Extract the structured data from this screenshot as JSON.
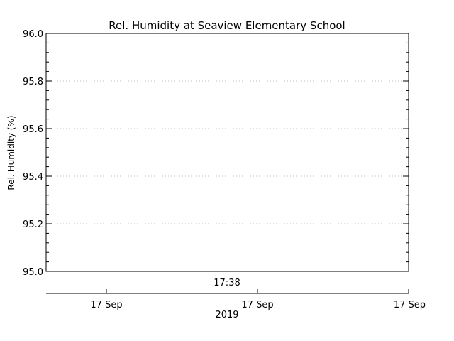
{
  "chart_data": {
    "type": "line",
    "title": "Rel. Humidity at Seaview Elementary School",
    "ylabel": "Rel. Humidity (%)",
    "xlabel": "",
    "ylim": [
      95.0,
      96.0
    ],
    "y_ticks": [
      95.0,
      95.2,
      95.4,
      95.6,
      95.8,
      96.0
    ],
    "y_tick_labels": [
      "95.0",
      "95.2",
      "95.4",
      "95.6",
      "95.8",
      "96.0"
    ],
    "grid": true,
    "time_label": "17:38",
    "date_ticks": [
      "17 Sep",
      "17 Sep",
      "17 Sep"
    ],
    "year_label": "2019",
    "series": []
  }
}
